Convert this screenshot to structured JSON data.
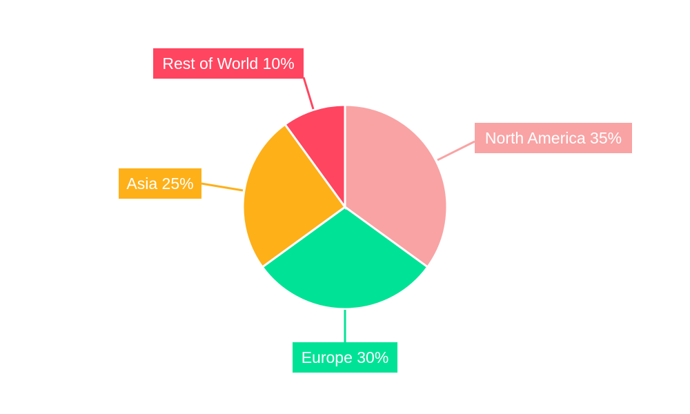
{
  "chart_data": {
    "type": "pie",
    "title": "",
    "start_angle_deg": 0,
    "direction": "clockwise",
    "slices": [
      {
        "label": "North America",
        "value": 35,
        "text": "North America 35%",
        "color": "#F9A3A4"
      },
      {
        "label": "Europe",
        "value": 30,
        "text": "Europe 30%",
        "color": "#00E396"
      },
      {
        "label": "Asia",
        "value": 25,
        "text": "Asia 25%",
        "color": "#FEB019"
      },
      {
        "label": "Rest of World",
        "value": 10,
        "text": "Rest of World 10%",
        "color": "#FF4560"
      }
    ]
  }
}
